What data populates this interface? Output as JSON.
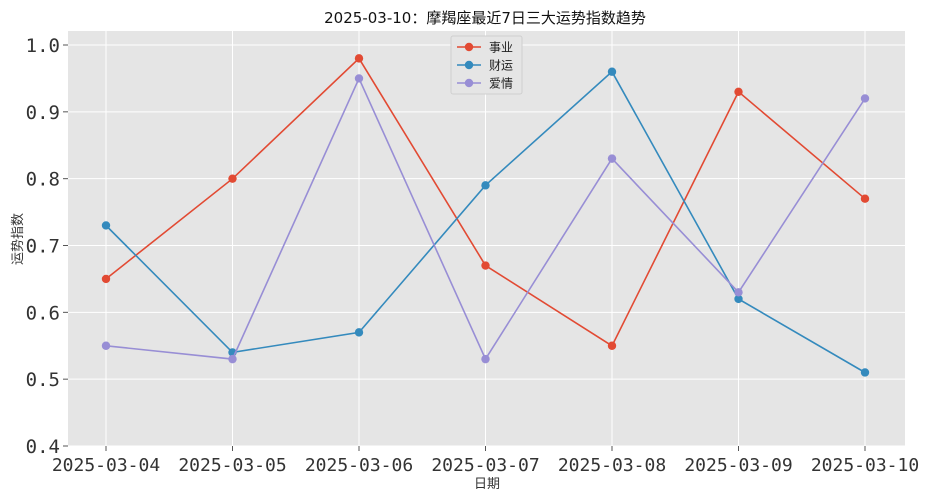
{
  "chart_data": {
    "type": "line",
    "title": "2025-03-10：摩羯座最近7日三大运势指数趋势",
    "xlabel": "日期",
    "ylabel": "运势指数",
    "categories": [
      "2025-03-04",
      "2025-03-05",
      "2025-03-06",
      "2025-03-07",
      "2025-03-08",
      "2025-03-09",
      "2025-03-10"
    ],
    "ylim": [
      0.4,
      1.0
    ],
    "yticks": [
      "0.4",
      "0.5",
      "0.6",
      "0.7",
      "0.8",
      "0.9",
      "1.0"
    ],
    "grid": true,
    "legend_position": "top-center",
    "series": [
      {
        "name": "事业",
        "color": "#E24A33",
        "values": [
          0.65,
          0.8,
          0.98,
          0.67,
          0.55,
          0.93,
          0.77
        ]
      },
      {
        "name": "财运",
        "color": "#348ABD",
        "values": [
          0.73,
          0.54,
          0.57,
          0.79,
          0.96,
          0.62,
          0.51
        ]
      },
      {
        "name": "爱情",
        "color": "#988ED5",
        "values": [
          0.55,
          0.53,
          0.95,
          0.53,
          0.83,
          0.63,
          0.92
        ]
      }
    ]
  }
}
